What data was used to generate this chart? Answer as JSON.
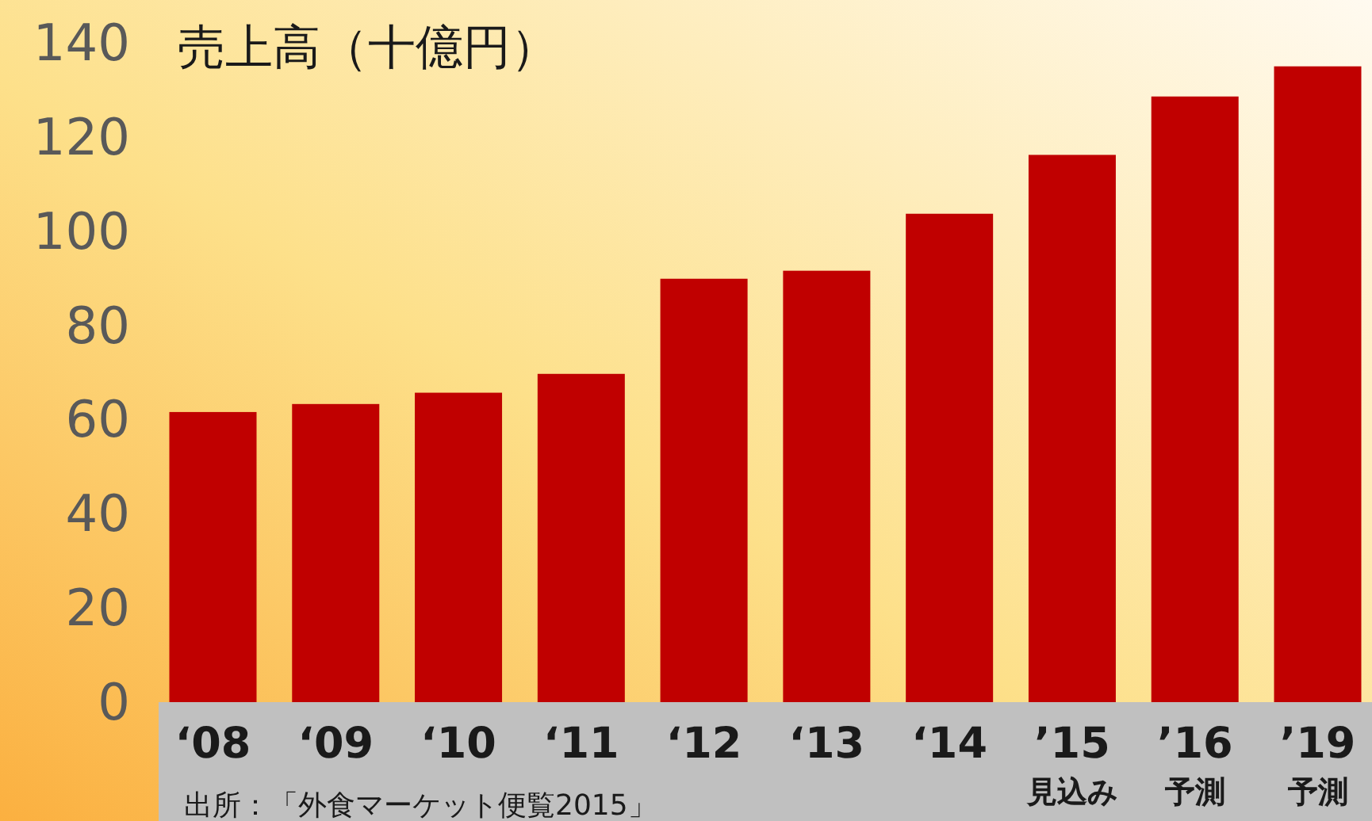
{
  "chart_data": {
    "type": "bar",
    "title": "売上高（十億円）",
    "categories": [
      "‘08",
      "‘09",
      "‘10",
      "‘11",
      "‘12",
      "‘13",
      "‘14",
      "’15\n見込み",
      "’16\n予測",
      "’19\n予測"
    ],
    "values": [
      61.6,
      63.3,
      65.7,
      69.7,
      89.9,
      91.6,
      103.7,
      116.2,
      128.6,
      135
    ],
    "color": "#c00000",
    "ylim": [
      0,
      140
    ],
    "yticks": [
      0,
      20,
      40,
      60,
      80,
      100,
      120,
      140
    ],
    "grid": false,
    "annotations": [
      "出所：「外食マーケット便覧2015」"
    ]
  }
}
